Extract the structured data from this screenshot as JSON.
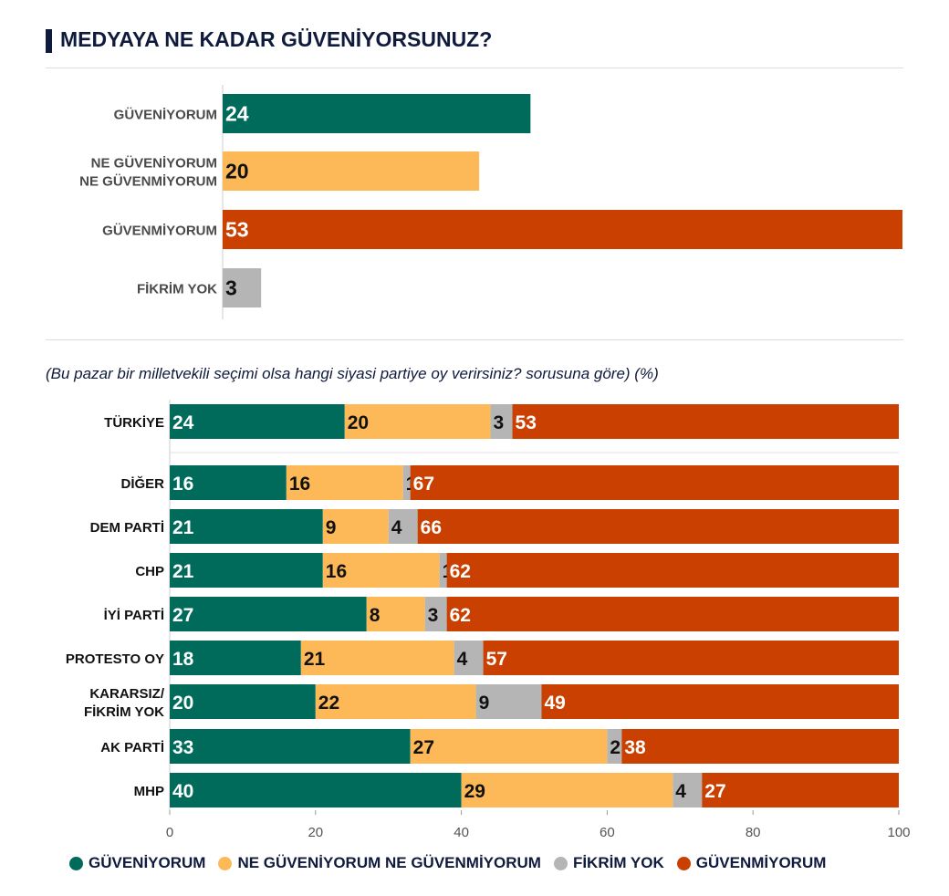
{
  "title": "MEDYAYA NE KADAR GÜVENİYORSUNUZ?",
  "subtitle": "(Bu pazar bir milletvekili seçimi olsa hangi siyasi partiye oy verirsiniz? sorusuna göre) (%)",
  "chart_data": [
    {
      "type": "bar",
      "orientation": "horizontal",
      "categories": [
        [
          "GÜVENİYORUM"
        ],
        [
          "NE GÜVENİYORUM",
          "NE GÜVENMİYORUM"
        ],
        [
          "GÜVENMİYORUM"
        ],
        [
          "FİKRİM YOK"
        ]
      ],
      "values": [
        24,
        20,
        53,
        3
      ],
      "colors": [
        "#006b5a",
        "#fdb957",
        "#c94000",
        "#b5b5b5"
      ],
      "value_text_colors": [
        "#ffffff",
        "#111111",
        "#ffffff",
        "#111111"
      ],
      "xlim": [
        0,
        53
      ]
    },
    {
      "type": "bar",
      "orientation": "horizontal",
      "stacked": true,
      "categories": [
        [
          "TÜRKİYE"
        ],
        [
          "DİĞER"
        ],
        [
          "DEM PARTİ"
        ],
        [
          "CHP"
        ],
        [
          "İYİ PARTİ"
        ],
        [
          "PROTESTO OY"
        ],
        [
          "KARARSIZ/",
          "FİKRİM YOK"
        ],
        [
          "AK PARTİ"
        ],
        [
          "MHP"
        ]
      ],
      "series": [
        {
          "name": "GÜVENİYORUM",
          "color": "#006b5a",
          "text_color": "#ffffff",
          "values": [
            24,
            16,
            21,
            21,
            27,
            18,
            20,
            33,
            40
          ]
        },
        {
          "name": "NE GÜVENİYORUM NE GÜVENMİYORUM",
          "color": "#fdb957",
          "text_color": "#111111",
          "values": [
            20,
            16,
            9,
            16,
            8,
            21,
            22,
            27,
            29
          ]
        },
        {
          "name": "FİKRİM YOK",
          "color": "#b5b5b5",
          "text_color": "#111111",
          "values": [
            3,
            1,
            4,
            1,
            3,
            4,
            9,
            2,
            4
          ]
        },
        {
          "name": "GÜVENMİYORUM",
          "color": "#c94000",
          "text_color": "#ffffff",
          "values": [
            53,
            67,
            66,
            62,
            62,
            57,
            49,
            38,
            27
          ]
        }
      ],
      "xlim": [
        0,
        100
      ],
      "xticks": [
        "0",
        "20",
        "40",
        "60",
        "80",
        "100"
      ],
      "grid": false
    }
  ],
  "legend": [
    {
      "label": "GÜVENİYORUM",
      "color": "#006b5a"
    },
    {
      "label": "NE GÜVENİYORUM NE GÜVENMİYORUM",
      "color": "#fdb957"
    },
    {
      "label": "FİKRİM YOK",
      "color": "#b5b5b5"
    },
    {
      "label": "GÜVENMİYORUM",
      "color": "#c94000"
    }
  ]
}
